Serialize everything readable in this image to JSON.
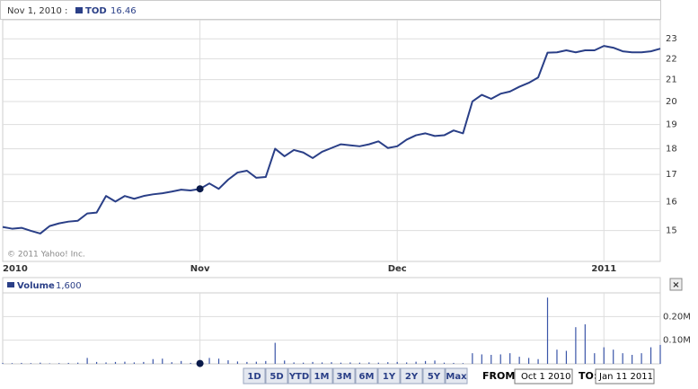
{
  "chart_data": [
    {
      "type": "line",
      "crosshair_label": "Nov 1, 2010 :",
      "crosshair_index": 21,
      "credit": "© 2011 Yahoo! Inc.",
      "categories": [
        "2010",
        null,
        null,
        null,
        null,
        null,
        null,
        null,
        null,
        null,
        null,
        null,
        null,
        null,
        null,
        null,
        null,
        null,
        null,
        null,
        null,
        "Nov",
        null,
        null,
        null,
        null,
        null,
        null,
        null,
        null,
        null,
        null,
        null,
        null,
        null,
        null,
        null,
        null,
        null,
        null,
        null,
        null,
        "Dec",
        null,
        null,
        null,
        null,
        null,
        null,
        null,
        null,
        null,
        null,
        null,
        null,
        null,
        null,
        null,
        null,
        null,
        null,
        null,
        null,
        null,
        "2011",
        null,
        null,
        null,
        null,
        null,
        null
      ],
      "series": [
        {
          "name": "TOD",
          "color": "#2a3f87",
          "values": [
            15.12,
            15.06,
            15.09,
            14.99,
            14.9,
            15.15,
            15.24,
            15.3,
            15.33,
            15.58,
            15.61,
            16.2,
            16.0,
            16.2,
            16.1,
            16.2,
            16.26,
            16.3,
            16.36,
            16.43,
            16.4,
            16.46,
            16.66,
            16.46,
            16.8,
            17.07,
            17.14,
            16.87,
            16.9,
            18.0,
            17.7,
            17.95,
            17.85,
            17.63,
            17.88,
            18.03,
            18.18,
            18.14,
            18.1,
            18.18,
            18.3,
            18.03,
            18.1,
            18.37,
            18.55,
            18.63,
            18.52,
            18.55,
            18.75,
            18.63,
            20.0,
            20.3,
            20.12,
            20.35,
            20.45,
            20.67,
            20.85,
            21.1,
            22.3,
            22.32,
            22.42,
            22.32,
            22.42,
            22.42,
            22.64,
            22.55,
            22.37,
            22.32,
            22.32,
            22.37,
            22.5
          ]
        }
      ],
      "ylim": [
        14,
        24
      ],
      "yticks": [
        15,
        16,
        17,
        18,
        19,
        20,
        21,
        22,
        23
      ],
      "log_scale": true,
      "grid": true
    },
    {
      "type": "bar",
      "series": [
        {
          "name": "Volume",
          "color": "#3a55a8",
          "values": [
            4000,
            3000,
            4000,
            3000,
            5000,
            2000,
            3000,
            4000,
            5000,
            25000,
            8000,
            6000,
            8000,
            9000,
            6000,
            8000,
            20000,
            22000,
            7000,
            12000,
            4000,
            1600,
            25000,
            22000,
            15000,
            10000,
            8000,
            9000,
            12000,
            89000,
            14000,
            6000,
            5000,
            8000,
            6000,
            7000,
            5000,
            6000,
            5000,
            6000,
            5000,
            7000,
            8000,
            6000,
            9000,
            12000,
            14000,
            5000,
            4000,
            3000,
            45000,
            40000,
            38000,
            40000,
            45000,
            30000,
            25000,
            20000,
            280000,
            60000,
            55000,
            155000,
            167000,
            45000,
            70000,
            60000,
            45000,
            38000,
            45000,
            70000,
            80000
          ],
          "value_labels": [
            null,
            null,
            null,
            null,
            null,
            null,
            null,
            null,
            null,
            null,
            null,
            null,
            null,
            null,
            null,
            null,
            null,
            null,
            null,
            null,
            null,
            "1,600",
            null,
            null,
            null,
            null,
            null,
            null,
            null,
            null,
            null,
            null,
            null,
            null,
            null,
            null,
            null,
            null,
            null,
            null,
            null,
            null,
            null,
            null,
            null,
            null,
            null,
            null,
            null,
            null,
            null,
            null,
            null,
            null,
            null,
            null,
            null,
            null,
            null,
            null,
            null,
            null,
            null,
            null,
            null,
            null,
            null,
            null,
            null,
            null,
            null
          ]
        }
      ],
      "ylim": [
        0,
        300000
      ],
      "yticks": [
        {
          "value": 100000,
          "label": "0.10M"
        },
        {
          "value": 200000,
          "label": "0.20M"
        }
      ],
      "grid": true
    }
  ],
  "controls": {
    "ranges": [
      "1D",
      "5D",
      "YTD",
      "1M",
      "3M",
      "6M",
      "1Y",
      "2Y",
      "5Y",
      "Max"
    ],
    "from_label": "FROM:",
    "from": "Oct 1 2010",
    "to_label": "TO:",
    "to": "Jan 11 2011",
    "close": "×"
  }
}
